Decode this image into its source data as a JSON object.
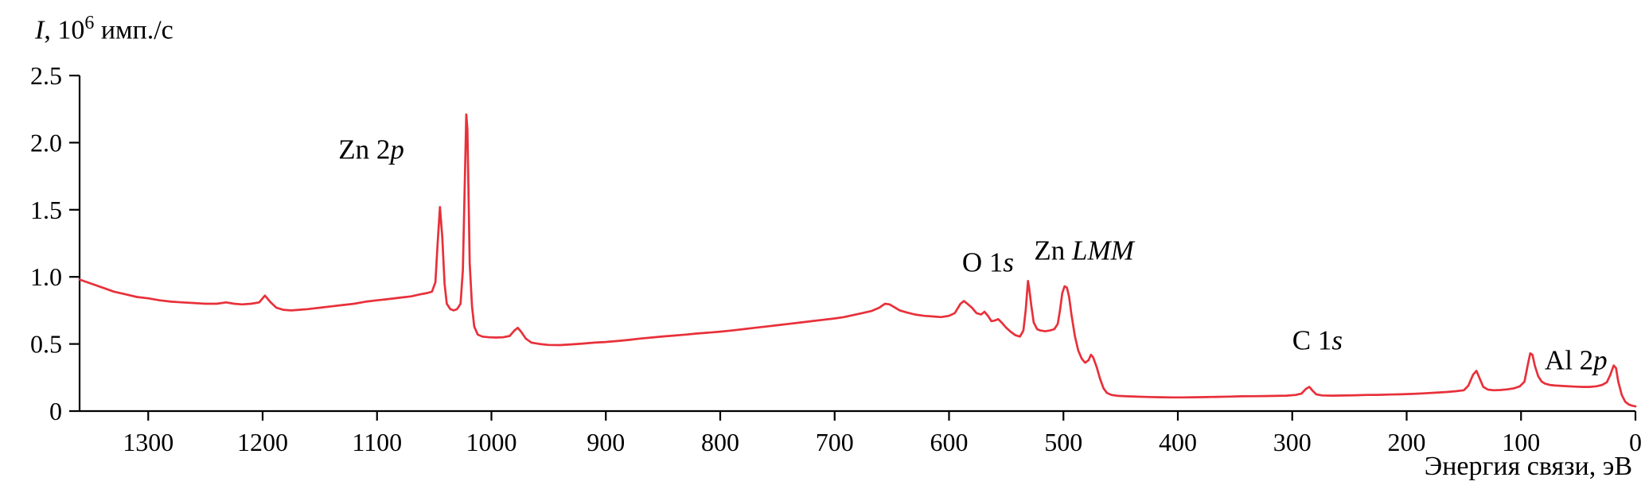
{
  "chart_data": {
    "type": "line",
    "title": "",
    "x_title": "Энергия связи, эВ",
    "y_title": {
      "italic": "I",
      "mid": ", 10",
      "sup": "6",
      "suffix": " имп./с"
    },
    "x_range": [
      1360,
      0
    ],
    "y_range": [
      0,
      2.5
    ],
    "x_ticks": [
      1300,
      1200,
      1100,
      1000,
      900,
      800,
      700,
      600,
      500,
      400,
      300,
      200,
      100,
      0
    ],
    "y_ticks": [
      0,
      0.5,
      1.0,
      1.5,
      2.0,
      2.5
    ],
    "y_tick_labels": [
      "0",
      "0.5",
      "1.0",
      "1.5",
      "2.0",
      "2.5"
    ],
    "grid": false,
    "legend": "none",
    "line_color": "#e8303a",
    "peak_labels": [
      {
        "text": "Zn 2",
        "italic": "p",
        "x": 1105,
        "y": 1.88,
        "anchor": "middle"
      },
      {
        "text": "O 1",
        "italic": "s",
        "x": 566,
        "y": 1.04,
        "anchor": "middle"
      },
      {
        "text": "Zn ",
        "italic": "LMM",
        "x": 482,
        "y": 1.13,
        "anchor": "middle"
      },
      {
        "text": "C 1",
        "italic": "s",
        "x": 278,
        "y": 0.46,
        "anchor": "middle"
      },
      {
        "text": "Al 2",
        "italic": "p",
        "x": 52,
        "y": 0.31,
        "anchor": "middle"
      }
    ],
    "series": [
      {
        "name": "survey-spectrum",
        "points": [
          [
            1360,
            0.98
          ],
          [
            1350,
            0.95
          ],
          [
            1340,
            0.92
          ],
          [
            1330,
            0.89
          ],
          [
            1320,
            0.87
          ],
          [
            1310,
            0.85
          ],
          [
            1300,
            0.84
          ],
          [
            1290,
            0.825
          ],
          [
            1280,
            0.815
          ],
          [
            1270,
            0.81
          ],
          [
            1260,
            0.805
          ],
          [
            1250,
            0.8
          ],
          [
            1240,
            0.8
          ],
          [
            1232,
            0.81
          ],
          [
            1225,
            0.8
          ],
          [
            1218,
            0.795
          ],
          [
            1210,
            0.8
          ],
          [
            1203,
            0.81
          ],
          [
            1198,
            0.86
          ],
          [
            1193,
            0.81
          ],
          [
            1188,
            0.77
          ],
          [
            1182,
            0.755
          ],
          [
            1175,
            0.75
          ],
          [
            1168,
            0.755
          ],
          [
            1160,
            0.76
          ],
          [
            1150,
            0.77
          ],
          [
            1140,
            0.78
          ],
          [
            1130,
            0.79
          ],
          [
            1120,
            0.8
          ],
          [
            1110,
            0.815
          ],
          [
            1100,
            0.825
          ],
          [
            1090,
            0.835
          ],
          [
            1080,
            0.845
          ],
          [
            1070,
            0.855
          ],
          [
            1062,
            0.87
          ],
          [
            1056,
            0.88
          ],
          [
            1052,
            0.89
          ],
          [
            1049,
            0.96
          ],
          [
            1047,
            1.25
          ],
          [
            1045,
            1.52
          ],
          [
            1043,
            1.3
          ],
          [
            1041,
            0.95
          ],
          [
            1039,
            0.8
          ],
          [
            1036,
            0.76
          ],
          [
            1033,
            0.75
          ],
          [
            1030,
            0.76
          ],
          [
            1027,
            0.8
          ],
          [
            1025,
            1.05
          ],
          [
            1023,
            1.8
          ],
          [
            1022,
            2.21
          ],
          [
            1021,
            2.1
          ],
          [
            1020,
            1.6
          ],
          [
            1019,
            1.1
          ],
          [
            1017,
            0.78
          ],
          [
            1015,
            0.63
          ],
          [
            1012,
            0.57
          ],
          [
            1008,
            0.555
          ],
          [
            1002,
            0.55
          ],
          [
            996,
            0.548
          ],
          [
            990,
            0.55
          ],
          [
            984,
            0.56
          ],
          [
            980,
            0.6
          ],
          [
            977,
            0.62
          ],
          [
            974,
            0.59
          ],
          [
            970,
            0.54
          ],
          [
            965,
            0.51
          ],
          [
            958,
            0.5
          ],
          [
            950,
            0.493
          ],
          [
            940,
            0.492
          ],
          [
            930,
            0.497
          ],
          [
            920,
            0.503
          ],
          [
            910,
            0.51
          ],
          [
            900,
            0.515
          ],
          [
            890,
            0.522
          ],
          [
            880,
            0.53
          ],
          [
            870,
            0.54
          ],
          [
            860,
            0.548
          ],
          [
            850,
            0.556
          ],
          [
            840,
            0.563
          ],
          [
            830,
            0.57
          ],
          [
            820,
            0.578
          ],
          [
            810,
            0.585
          ],
          [
            800,
            0.592
          ],
          [
            790,
            0.6
          ],
          [
            780,
            0.61
          ],
          [
            770,
            0.62
          ],
          [
            760,
            0.63
          ],
          [
            750,
            0.64
          ],
          [
            740,
            0.65
          ],
          [
            730,
            0.66
          ],
          [
            720,
            0.67
          ],
          [
            710,
            0.68
          ],
          [
            700,
            0.69
          ],
          [
            692,
            0.7
          ],
          [
            684,
            0.715
          ],
          [
            676,
            0.73
          ],
          [
            668,
            0.745
          ],
          [
            661,
            0.77
          ],
          [
            656,
            0.8
          ],
          [
            652,
            0.795
          ],
          [
            648,
            0.775
          ],
          [
            643,
            0.75
          ],
          [
            637,
            0.735
          ],
          [
            630,
            0.72
          ],
          [
            622,
            0.71
          ],
          [
            614,
            0.705
          ],
          [
            607,
            0.7
          ],
          [
            600,
            0.71
          ],
          [
            595,
            0.73
          ],
          [
            590,
            0.8
          ],
          [
            587,
            0.82
          ],
          [
            584,
            0.8
          ],
          [
            580,
            0.77
          ],
          [
            576,
            0.73
          ],
          [
            572,
            0.72
          ],
          [
            569,
            0.74
          ],
          [
            566,
            0.71
          ],
          [
            563,
            0.67
          ],
          [
            560,
            0.675
          ],
          [
            557,
            0.685
          ],
          [
            554,
            0.66
          ],
          [
            550,
            0.62
          ],
          [
            546,
            0.59
          ],
          [
            542,
            0.565
          ],
          [
            538,
            0.555
          ],
          [
            535,
            0.6
          ],
          [
            533,
            0.75
          ],
          [
            531,
            0.97
          ],
          [
            530,
            0.92
          ],
          [
            528,
            0.78
          ],
          [
            526,
            0.66
          ],
          [
            523,
            0.61
          ],
          [
            520,
            0.6
          ],
          [
            516,
            0.595
          ],
          [
            512,
            0.6
          ],
          [
            508,
            0.61
          ],
          [
            505,
            0.65
          ],
          [
            503,
            0.75
          ],
          [
            501,
            0.88
          ],
          [
            499,
            0.93
          ],
          [
            497,
            0.92
          ],
          [
            495,
            0.85
          ],
          [
            493,
            0.72
          ],
          [
            490,
            0.56
          ],
          [
            487,
            0.45
          ],
          [
            484,
            0.39
          ],
          [
            481,
            0.36
          ],
          [
            478,
            0.38
          ],
          [
            476,
            0.42
          ],
          [
            474,
            0.4
          ],
          [
            471,
            0.33
          ],
          [
            468,
            0.24
          ],
          [
            465,
            0.17
          ],
          [
            462,
            0.135
          ],
          [
            458,
            0.12
          ],
          [
            452,
            0.113
          ],
          [
            445,
            0.11
          ],
          [
            435,
            0.107
          ],
          [
            425,
            0.105
          ],
          [
            415,
            0.103
          ],
          [
            405,
            0.102
          ],
          [
            395,
            0.102
          ],
          [
            385,
            0.103
          ],
          [
            375,
            0.104
          ],
          [
            365,
            0.106
          ],
          [
            355,
            0.108
          ],
          [
            345,
            0.11
          ],
          [
            335,
            0.111
          ],
          [
            325,
            0.112
          ],
          [
            315,
            0.113
          ],
          [
            305,
            0.115
          ],
          [
            297,
            0.12
          ],
          [
            292,
            0.13
          ],
          [
            288,
            0.165
          ],
          [
            285,
            0.18
          ],
          [
            282,
            0.15
          ],
          [
            279,
            0.125
          ],
          [
            274,
            0.117
          ],
          [
            265,
            0.115
          ],
          [
            255,
            0.116
          ],
          [
            245,
            0.118
          ],
          [
            235,
            0.12
          ],
          [
            225,
            0.121
          ],
          [
            215,
            0.123
          ],
          [
            205,
            0.125
          ],
          [
            195,
            0.128
          ],
          [
            185,
            0.132
          ],
          [
            175,
            0.137
          ],
          [
            165,
            0.142
          ],
          [
            157,
            0.148
          ],
          [
            150,
            0.155
          ],
          [
            146,
            0.19
          ],
          [
            142,
            0.27
          ],
          [
            139,
            0.3
          ],
          [
            136,
            0.24
          ],
          [
            133,
            0.18
          ],
          [
            129,
            0.16
          ],
          [
            124,
            0.155
          ],
          [
            118,
            0.157
          ],
          [
            112,
            0.162
          ],
          [
            106,
            0.17
          ],
          [
            101,
            0.185
          ],
          [
            97,
            0.22
          ],
          [
            94,
            0.35
          ],
          [
            92,
            0.43
          ],
          [
            90,
            0.42
          ],
          [
            88,
            0.34
          ],
          [
            85,
            0.26
          ],
          [
            82,
            0.22
          ],
          [
            79,
            0.205
          ],
          [
            75,
            0.195
          ],
          [
            70,
            0.19
          ],
          [
            64,
            0.187
          ],
          [
            58,
            0.184
          ],
          [
            52,
            0.182
          ],
          [
            46,
            0.18
          ],
          [
            40,
            0.18
          ],
          [
            34,
            0.185
          ],
          [
            29,
            0.195
          ],
          [
            25,
            0.215
          ],
          [
            22,
            0.27
          ],
          [
            19,
            0.34
          ],
          [
            17,
            0.32
          ],
          [
            15,
            0.22
          ],
          [
            12,
            0.12
          ],
          [
            9,
            0.07
          ],
          [
            6,
            0.05
          ],
          [
            3,
            0.04
          ],
          [
            0,
            0.035
          ]
        ]
      }
    ]
  }
}
